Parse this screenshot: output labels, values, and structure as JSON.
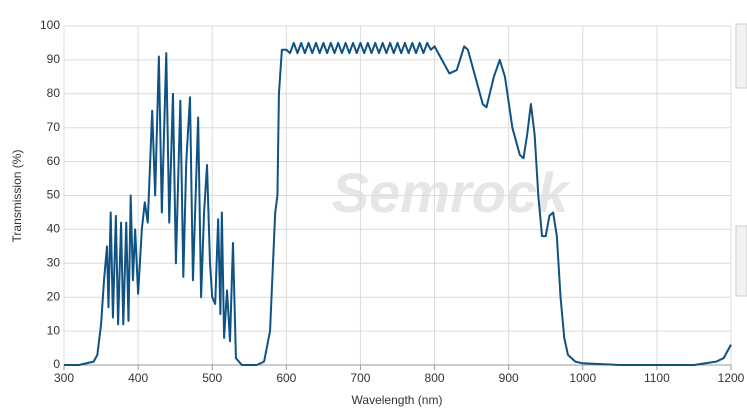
{
  "chart_data": {
    "type": "line",
    "xlabel": "Wavelength (nm)",
    "ylabel": "Transmission (%)",
    "watermark": "Semrock",
    "color": "#0f5283",
    "grid": true,
    "xlim": [
      300,
      1200
    ],
    "xticks": [
      300,
      400,
      500,
      600,
      700,
      800,
      900,
      1000,
      1100,
      1200
    ],
    "ylim": [
      0,
      100
    ],
    "yticks": [
      0,
      10,
      20,
      30,
      40,
      50,
      60,
      70,
      80,
      90,
      100
    ],
    "x": [
      300,
      320,
      340,
      345,
      350,
      354,
      358,
      360,
      363,
      366,
      370,
      373,
      377,
      380,
      384,
      387,
      390,
      393,
      396,
      400,
      405,
      409,
      413,
      419,
      423,
      428,
      432,
      438,
      442,
      447,
      451,
      457,
      461,
      465,
      470,
      474,
      481,
      485,
      489,
      493,
      497,
      500,
      504,
      508,
      511,
      513,
      516,
      520,
      524,
      528,
      532,
      540,
      560,
      570,
      578,
      582,
      585,
      588,
      590,
      594,
      600,
      605,
      610,
      615,
      620,
      625,
      630,
      635,
      640,
      645,
      650,
      655,
      660,
      665,
      670,
      675,
      680,
      685,
      690,
      695,
      700,
      705,
      710,
      715,
      720,
      725,
      730,
      735,
      740,
      745,
      750,
      755,
      760,
      765,
      770,
      775,
      780,
      785,
      790,
      795,
      800,
      810,
      820,
      830,
      840,
      845,
      855,
      865,
      870,
      880,
      888,
      895,
      905,
      915,
      920,
      925,
      930,
      935,
      940,
      945,
      950,
      955,
      960,
      965,
      970,
      975,
      980,
      990,
      1000,
      1050,
      1100,
      1150,
      1180,
      1190,
      1200
    ],
    "values": [
      0,
      0,
      1,
      3,
      12,
      25,
      35,
      17,
      45,
      14,
      44,
      12,
      42,
      12,
      42,
      13,
      50,
      25,
      40,
      21,
      40,
      48,
      42,
      75,
      50,
      91,
      45,
      92,
      42,
      80,
      30,
      78,
      26,
      60,
      79,
      25,
      73,
      20,
      45,
      59,
      30,
      20,
      18,
      43,
      15,
      45,
      8,
      22,
      7,
      36,
      2,
      0,
      0,
      1,
      10,
      30,
      45,
      50,
      80,
      93,
      93,
      92,
      95,
      92,
      95,
      92,
      95,
      92,
      95,
      92,
      95,
      92,
      95,
      92,
      95,
      92,
      95,
      92,
      95,
      92,
      95,
      92,
      95,
      92,
      95,
      92,
      95,
      92,
      95,
      92,
      95,
      92,
      95,
      92,
      95,
      92,
      95,
      92,
      95,
      93,
      94,
      90,
      86,
      87,
      94,
      93,
      85,
      77,
      76,
      85,
      90,
      85,
      70,
      62,
      61,
      68,
      77,
      68,
      50,
      38,
      38,
      44,
      45,
      38,
      20,
      8,
      3,
      1,
      0.5,
      0,
      0,
      0,
      1,
      2,
      6
    ]
  }
}
